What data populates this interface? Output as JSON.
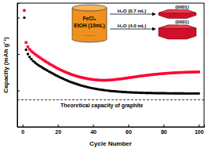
{
  "chart_data": {
    "type": "scatter",
    "x_label": "Cycle Number",
    "y_label": "Capacity (mAh g⁻¹)",
    "xlim": [
      -3,
      103
    ],
    "xticks": [
      0,
      20,
      40,
      60,
      80,
      100
    ],
    "ylim": [
      0,
      1700
    ],
    "yticks": [
      0,
      500,
      1000,
      1500
    ],
    "tick_labels": "x",
    "x": [
      1,
      2,
      3,
      4,
      5,
      6,
      7,
      8,
      9,
      10,
      11,
      12,
      13,
      14,
      15,
      16,
      17,
      18,
      19,
      20,
      21,
      22,
      23,
      24,
      25,
      26,
      27,
      28,
      29,
      30,
      31,
      32,
      33,
      34,
      35,
      36,
      37,
      38,
      39,
      40,
      41,
      42,
      43,
      44,
      45,
      46,
      47,
      48,
      49,
      50,
      51,
      52,
      53,
      54,
      55,
      56,
      57,
      58,
      59,
      60,
      61,
      62,
      63,
      64,
      65,
      66,
      67,
      68,
      69,
      70,
      71,
      72,
      73,
      74,
      75,
      76,
      77,
      78,
      79,
      80,
      81,
      82,
      83,
      84,
      85,
      86,
      87,
      88,
      89,
      90,
      91,
      92,
      93,
      94,
      95,
      96,
      97,
      98,
      99,
      100
    ],
    "series": [
      {
        "color": "#000000",
        "marker": "circle",
        "values": [
          1500,
          1060,
          1000,
          960,
          930,
          905,
          885,
          865,
          848,
          832,
          817,
          802,
          788,
          774,
          760,
          747,
          734,
          721,
          708,
          696,
          684,
          672,
          661,
          650,
          640,
          630,
          620,
          611,
          602,
          594,
          586,
          578,
          571,
          564,
          557,
          551,
          545,
          539,
          534,
          529,
          524,
          520,
          516,
          512,
          508,
          505,
          502,
          499,
          496,
          493,
          491,
          489,
          487,
          485,
          483,
          481,
          479,
          478,
          476,
          475,
          474,
          473,
          472,
          471,
          470,
          469,
          468,
          468,
          467,
          466,
          466,
          465,
          465,
          464,
          464,
          463,
          463,
          463,
          462,
          462,
          462,
          461,
          461,
          461,
          461,
          460,
          460,
          460,
          460,
          460,
          460,
          459,
          459,
          459,
          459,
          459,
          459,
          459,
          459,
          459
        ]
      },
      {
        "color": "#ff0033",
        "marker": "square",
        "values": [
          1600,
          1160,
          1100,
          1065,
          1040,
          1020,
          1000,
          982,
          965,
          948,
          932,
          916,
          900,
          885,
          870,
          856,
          842,
          828,
          815,
          802,
          790,
          778,
          767,
          756,
          746,
          736,
          727,
          718,
          710,
          702,
          695,
          688,
          682,
          676,
          671,
          666,
          661,
          657,
          653,
          650,
          647,
          645,
          643,
          641,
          640,
          640,
          640,
          641,
          642,
          644,
          646,
          648,
          651,
          654,
          657,
          660,
          663,
          667,
          670,
          674,
          677,
          681,
          684,
          688,
          691,
          695,
          698,
          701,
          704,
          707,
          710,
          713,
          716,
          718,
          721,
          723,
          726,
          728,
          730,
          732,
          734,
          736,
          738,
          739,
          741,
          742,
          744,
          745,
          746,
          747,
          748,
          749,
          750,
          751,
          752,
          752,
          753,
          754,
          754,
          755
        ]
      }
    ],
    "reference_line": {
      "value": 372,
      "label": "Theoretical capacity of graphite",
      "line_style": "dashed"
    },
    "inset": {
      "beaker_labels": [
        "FeCl₃",
        "EtOH (10mL)"
      ],
      "arrows": [
        {
          "label": "H₂O (0.7 mL)",
          "facet": "(0001)"
        },
        {
          "label": "H₂O (4.0 mL)",
          "facet": "(0001)"
        }
      ]
    }
  }
}
